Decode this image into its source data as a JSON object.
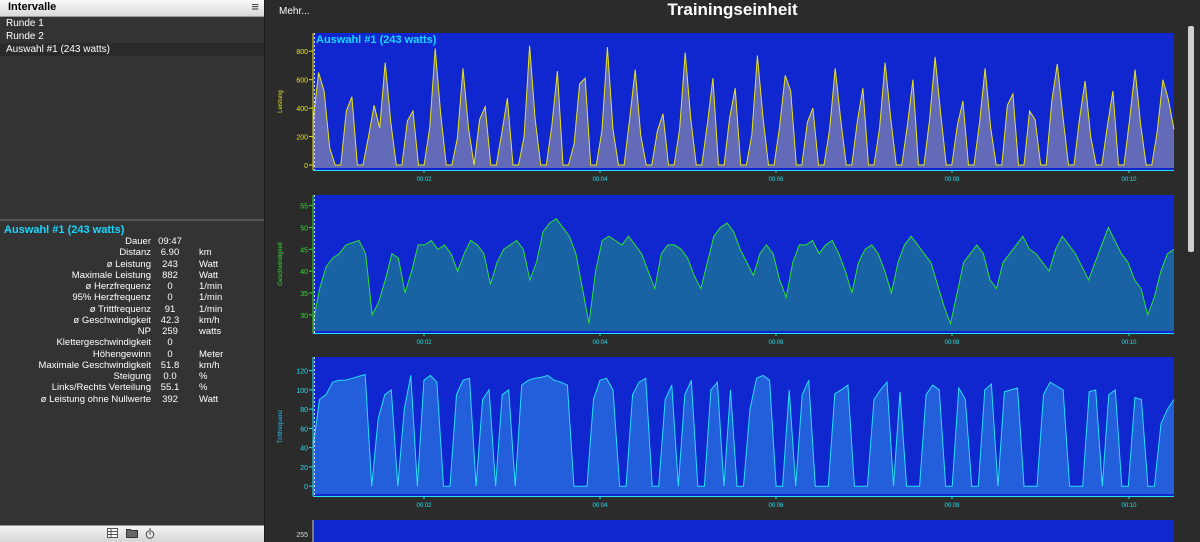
{
  "left": {
    "header_title": "Intervalle",
    "menu_glyph": "≡",
    "intervals": [
      "Runde 1",
      "Runde 2",
      "Auswahl #1 (243 watts)"
    ],
    "summary_title": "Auswahl #1 (243 watts)",
    "metrics": [
      {
        "label": "Dauer",
        "value": "09:47",
        "unit": ""
      },
      {
        "label": "Distanz",
        "value": "6.90",
        "unit": "km"
      },
      {
        "label": "ø Leistung",
        "value": "243",
        "unit": "Watt"
      },
      {
        "label": "Maximale Leistung",
        "value": "882",
        "unit": "Watt"
      },
      {
        "label": "ø Herzfrequenz",
        "value": "0",
        "unit": "1/min"
      },
      {
        "label": "95% Herzfrequenz",
        "value": "0",
        "unit": "1/min"
      },
      {
        "label": "ø Trittfrequenz",
        "value": "91",
        "unit": "1/min"
      },
      {
        "label": "ø Geschwindigkeit",
        "value": "42.3",
        "unit": "km/h"
      },
      {
        "label": "NP",
        "value": "259",
        "unit": "watts"
      },
      {
        "label": "Klettergeschwindigkeit",
        "value": "0",
        "unit": ""
      },
      {
        "label": "Höhengewinn",
        "value": "0",
        "unit": "Meter"
      },
      {
        "label": "Maximale Geschwindigkeit",
        "value": "51.8",
        "unit": "km/h"
      },
      {
        "label": "Steigung",
        "value": "0.0",
        "unit": "%"
      },
      {
        "label": "Links/Rechts Verteilung",
        "value": "55.1",
        "unit": "%"
      },
      {
        "label": "ø Leistung ohne Nullwerte",
        "value": "392",
        "unit": "Watt"
      }
    ],
    "footer_icons": [
      "table-icon",
      "folder-icon",
      "stopwatch-icon"
    ]
  },
  "right": {
    "more_label": "Mehr...",
    "title": "Trainingseinheit",
    "x_ticks": [
      "00:02",
      "00:04",
      "00:06",
      "00:08",
      "00:10"
    ],
    "plot_overlay_label": "Auswahl #1 (243 watts)",
    "fourth_plot_top_tick": "255"
  },
  "colors": {
    "plot_bg": "#1027d0",
    "power_line": "#e8e41c",
    "speed_line": "#2ee02e",
    "cadence_line": "#26e0f0",
    "axis_tick": "#22e0f0",
    "accent": "#17d7ff"
  },
  "chart_data": [
    {
      "type": "area",
      "ylabel": "Leistung",
      "y_ticks": [
        0,
        200,
        400,
        600,
        800
      ],
      "ylim": [
        0,
        900
      ],
      "x_unit": "time",
      "x_ticks": [
        "00:02",
        "00:04",
        "00:06",
        "00:08",
        "00:10"
      ],
      "series": [
        {
          "values": [
            300,
            650,
            520,
            120,
            0,
            0,
            380,
            480,
            0,
            0,
            200,
            420,
            260,
            720,
            300,
            0,
            0,
            310,
            380,
            0,
            0,
            260,
            820,
            350,
            0,
            0,
            190,
            680,
            260,
            0,
            320,
            410,
            0,
            0,
            230,
            470,
            0,
            0,
            200,
            840,
            320,
            0,
            0,
            280,
            660,
            0,
            0,
            150,
            570,
            610,
            0,
            0,
            240,
            830,
            250,
            0,
            0,
            320,
            670,
            210,
            0,
            0,
            240,
            360,
            0,
            0,
            250,
            790,
            330,
            0,
            0,
            290,
            610,
            0,
            0,
            330,
            540,
            0,
            0,
            210,
            770,
            340,
            0,
            0,
            270,
            630,
            520,
            0,
            0,
            300,
            400,
            0,
            0,
            250,
            680,
            320,
            0,
            0,
            310,
            540,
            0,
            0,
            260,
            720,
            330,
            0,
            0,
            280,
            600,
            0,
            0,
            320,
            760,
            360,
            0,
            0,
            280,
            450,
            0,
            0,
            300,
            680,
            260,
            0,
            0,
            420,
            500,
            0,
            0,
            380,
            320,
            0,
            0,
            450,
            710,
            340,
            0,
            0,
            330,
            590,
            200,
            0,
            0,
            270,
            520,
            0,
            0,
            320,
            670,
            280,
            0,
            0,
            240,
            600,
            460,
            250
          ]
        }
      ]
    },
    {
      "type": "area",
      "ylabel": "Geschwindigkeit",
      "y_ticks": [
        30,
        35,
        40,
        45,
        50,
        55
      ],
      "ylim": [
        27,
        56.5
      ],
      "x_unit": "time",
      "x_ticks": [
        "00:02",
        "00:04",
        "00:06",
        "00:08",
        "00:10"
      ],
      "series": [
        {
          "values": [
            28,
            36,
            41,
            43,
            44,
            46,
            46.5,
            47,
            44,
            30,
            33,
            38,
            44,
            43,
            35,
            40,
            46,
            46,
            47,
            45,
            46,
            44,
            40,
            44,
            47,
            46,
            44,
            37,
            42,
            45,
            46,
            47,
            45,
            38,
            42,
            49,
            51,
            52,
            50,
            48,
            44,
            36,
            28,
            40,
            47,
            48,
            47,
            46,
            48,
            46,
            44,
            40,
            36,
            44,
            46,
            46,
            45,
            43,
            39,
            36,
            42,
            48,
            50,
            51,
            49,
            45,
            42,
            39,
            44,
            46,
            44,
            38,
            34,
            42,
            46,
            46,
            47,
            44,
            46,
            47,
            44,
            40,
            35,
            42,
            45,
            46,
            44,
            40,
            35,
            42,
            46,
            48,
            46,
            44,
            42,
            37,
            32,
            28,
            35,
            42,
            44,
            46,
            44,
            38,
            36,
            42,
            44,
            46,
            48,
            45,
            44,
            42,
            40,
            45,
            48,
            46,
            44,
            41,
            38,
            42,
            46,
            50,
            47,
            44,
            42,
            38,
            36,
            30,
            34,
            40,
            44,
            45
          ]
        }
      ]
    },
    {
      "type": "area",
      "ylabel": "Trittfrequenz",
      "y_ticks": [
        0,
        20,
        40,
        60,
        80,
        100,
        120
      ],
      "ylim": [
        -5,
        130
      ],
      "x_unit": "time",
      "x_ticks": [
        "00:02",
        "00:04",
        "00:06",
        "00:08",
        "00:10"
      ],
      "series": [
        {
          "values": [
            40,
            90,
            95,
            108,
            110,
            110,
            112,
            114,
            116,
            0,
            70,
            95,
            100,
            0,
            80,
            115,
            0,
            110,
            115,
            108,
            0,
            0,
            95,
            110,
            112,
            0,
            90,
            100,
            0,
            95,
            100,
            0,
            105,
            110,
            112,
            113,
            115,
            110,
            108,
            105,
            0,
            0,
            0,
            90,
            110,
            112,
            100,
            0,
            0,
            95,
            108,
            112,
            0,
            0,
            90,
            105,
            0,
            95,
            110,
            0,
            0,
            100,
            108,
            0,
            100,
            0,
            0,
            80,
            112,
            115,
            110,
            0,
            0,
            100,
            0,
            95,
            110,
            0,
            0,
            0,
            96,
            100,
            105,
            0,
            0,
            0,
            90,
            100,
            108,
            0,
            98,
            0,
            0,
            0,
            95,
            105,
            100,
            0,
            0,
            102,
            90,
            0,
            0,
            100,
            106,
            0,
            98,
            100,
            102,
            0,
            0,
            0,
            95,
            108,
            104,
            100,
            0,
            0,
            0,
            98,
            100,
            0,
            95,
            100,
            0,
            0,
            92,
            90,
            0,
            0,
            65,
            80,
            90
          ]
        }
      ]
    }
  ]
}
